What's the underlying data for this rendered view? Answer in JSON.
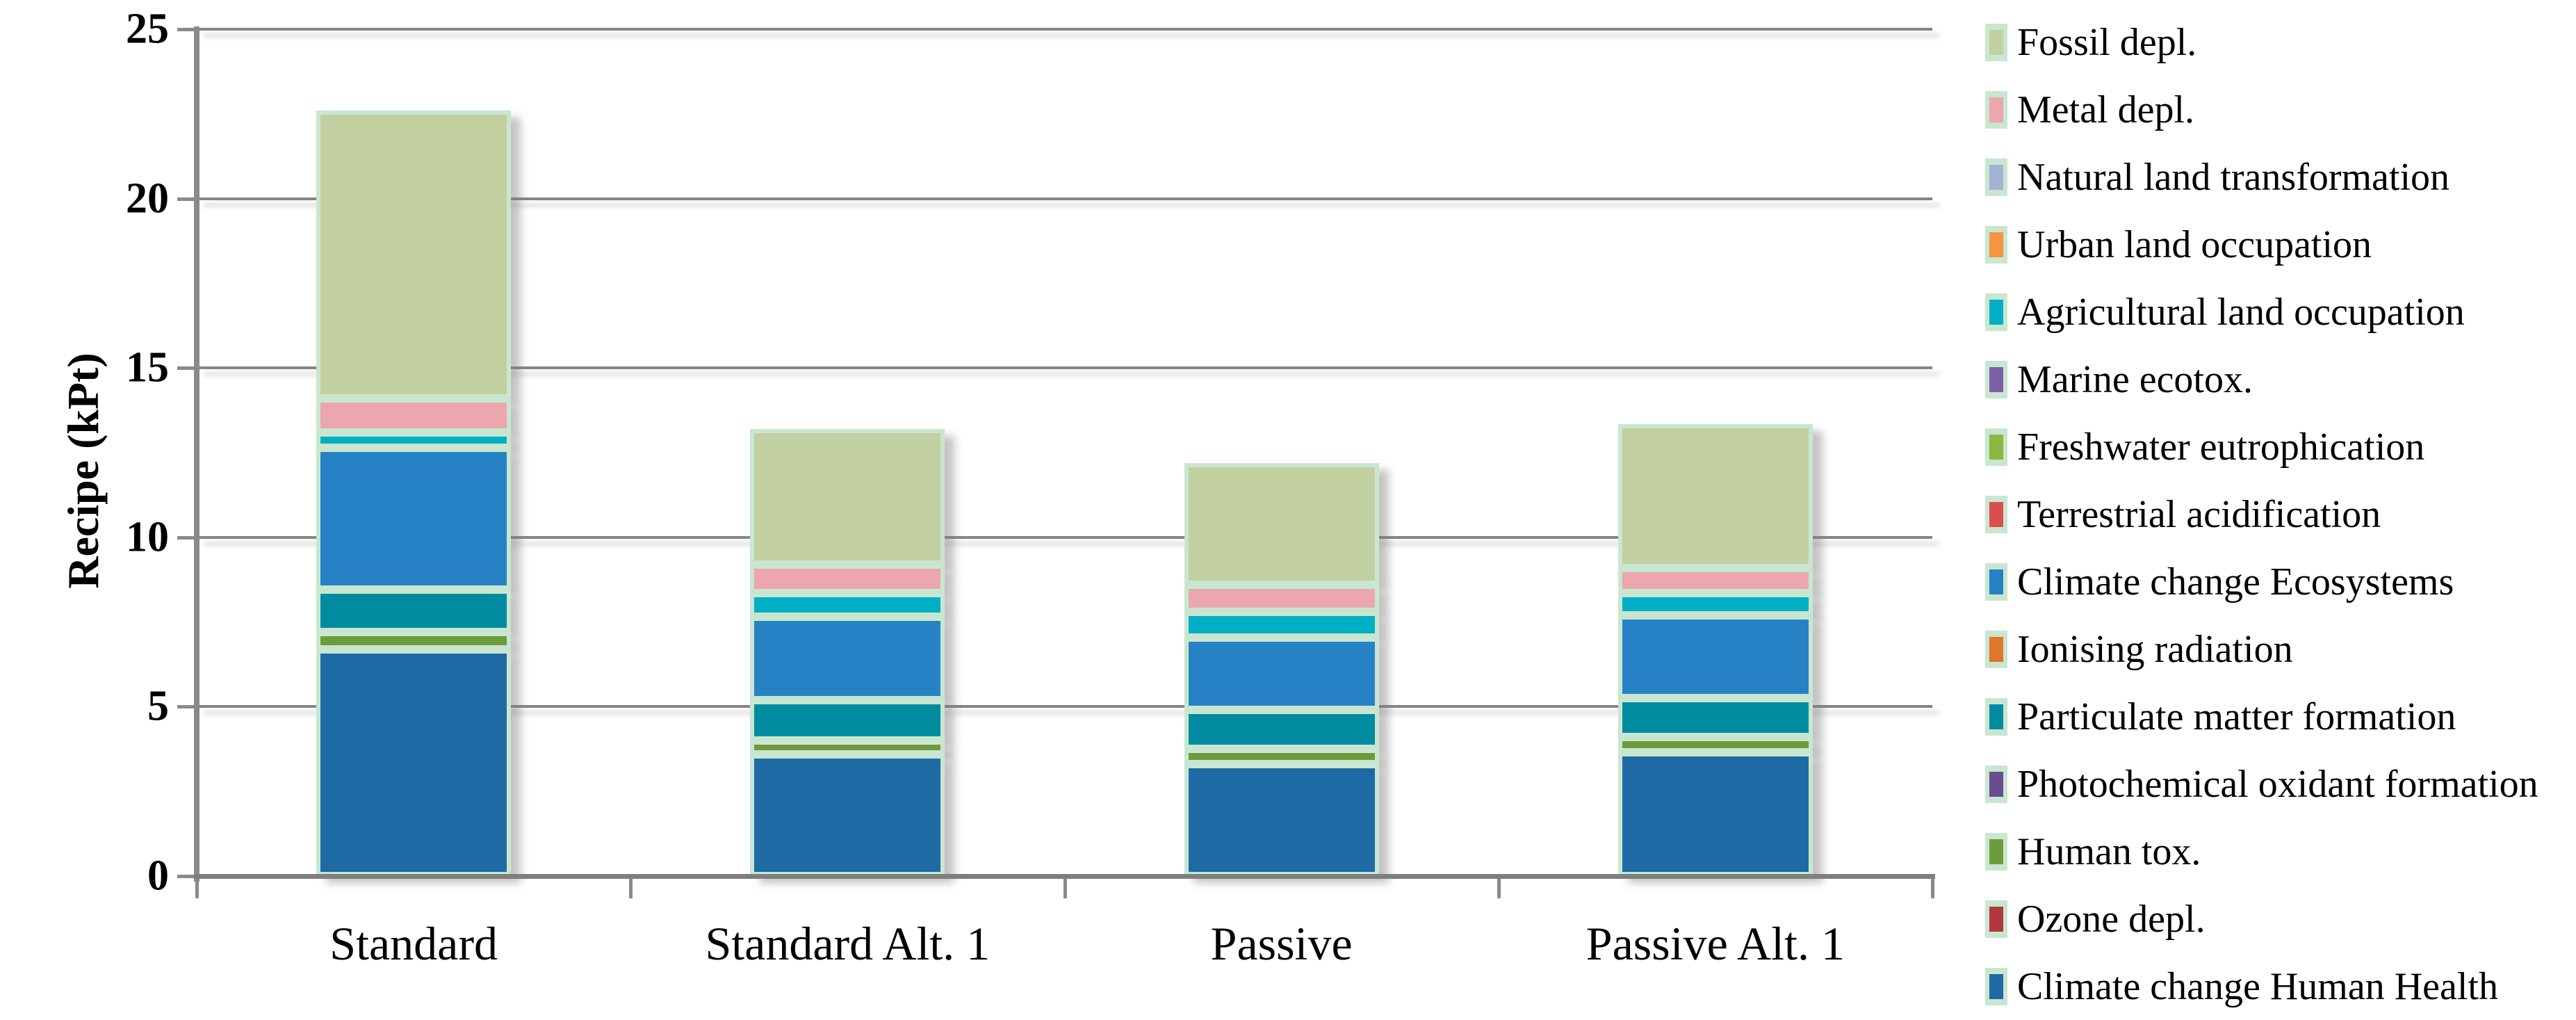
{
  "chart_data": {
    "type": "bar",
    "stacked": true,
    "title": "",
    "xlabel": "",
    "ylabel": "Recipe (kPt)",
    "ylim": [
      0,
      25
    ],
    "yticks": [
      0,
      5,
      10,
      15,
      20,
      25
    ],
    "grid": "horizontal",
    "legend_position": "right",
    "categories": [
      "Standard",
      "Standard Alt. 1",
      "Passive",
      "Passive Alt. 1"
    ],
    "totals": [
      22.6,
      13.2,
      12.2,
      13.3
    ],
    "series": [
      {
        "name": "Climate change Human Health",
        "color": "#1d6aa5",
        "values": [
          6.7,
          3.6,
          3.3,
          3.65
        ]
      },
      {
        "name": "Ozone depl.",
        "color": "#b2383f",
        "values": [
          0,
          0,
          0,
          0
        ]
      },
      {
        "name": "Human tox.",
        "color": "#6d9b3b",
        "values": [
          0.5,
          0.4,
          0.45,
          0.45
        ]
      },
      {
        "name": "Photochemical oxidant formation",
        "color": "#684d90",
        "values": [
          0,
          0,
          0,
          0
        ]
      },
      {
        "name": "Particulate matter formation",
        "color": "#008ba0",
        "values": [
          1.25,
          1.2,
          1.15,
          1.15
        ]
      },
      {
        "name": "Ionising radiation",
        "color": "#e2762b",
        "values": [
          0,
          0,
          0,
          0
        ]
      },
      {
        "name": "Climate change Ecosystems",
        "color": "#2782c5",
        "values": [
          4.2,
          2.45,
          2.15,
          2.45
        ]
      },
      {
        "name": "Terrestrial acidification",
        "color": "#d94f4d",
        "values": [
          0,
          0,
          0,
          0
        ]
      },
      {
        "name": "Freshwater eutrophication",
        "color": "#8cb83f",
        "values": [
          0,
          0,
          0,
          0
        ]
      },
      {
        "name": "Marine ecotox.",
        "color": "#7e5fa6",
        "values": [
          0,
          0,
          0,
          0
        ]
      },
      {
        "name": "Agricultural land occupation",
        "color": "#00afc4",
        "values": [
          0.45,
          0.7,
          0.75,
          0.65
        ]
      },
      {
        "name": "Urban land occupation",
        "color": "#f6953f",
        "values": [
          0,
          0,
          0,
          0
        ]
      },
      {
        "name": "Natural land transformation",
        "color": "#a3b3d6",
        "values": [
          0,
          0,
          0,
          0
        ]
      },
      {
        "name": "Metal depl.",
        "color": "#eca6ad",
        "values": [
          1.0,
          0.85,
          0.8,
          0.75
        ]
      },
      {
        "name": "Fossil depl.",
        "color": "#c2cfa0",
        "values": [
          8.5,
          4.0,
          3.6,
          4.25
        ]
      }
    ],
    "legend_order_top_to_bottom": [
      "Fossil depl.",
      "Metal depl.",
      "Natural land transformation",
      "Urban land occupation",
      "Agricultural land occupation",
      "Marine ecotox.",
      "Freshwater eutrophication",
      "Terrestrial acidification",
      "Climate change Ecosystems",
      "Ionising radiation",
      "Particulate matter formation",
      "Photochemical oxidant formation",
      "Human tox.",
      "Ozone depl.",
      "Climate change Human Health"
    ],
    "colors": {
      "segment_border_mint": "#c9e6d0",
      "gridline": "#858585",
      "axis": "#7f7f7f",
      "background": "#ffffff",
      "text": "#000000"
    }
  }
}
